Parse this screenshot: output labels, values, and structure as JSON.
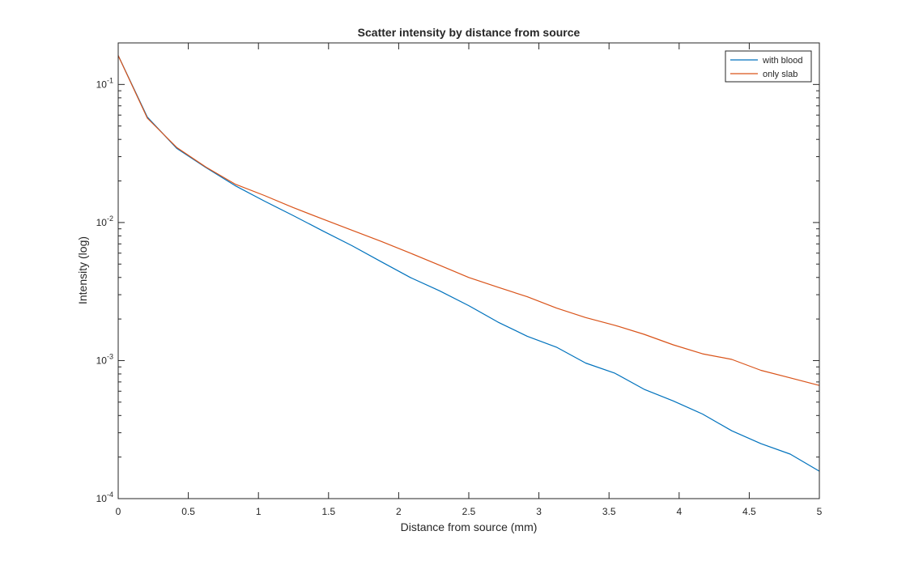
{
  "chart_data": {
    "type": "line",
    "title": "Scatter intensity by distance from source",
    "xlabel": "Distance from source (mm)",
    "ylabel": "Intensity (log)",
    "xlim": [
      0,
      5
    ],
    "ylim": [
      0.0001,
      0.2
    ],
    "yscale": "log",
    "grid": false,
    "legend_position": "top-right",
    "x_ticks": [
      0,
      0.5,
      1,
      1.5,
      2,
      2.5,
      3,
      3.5,
      4,
      4.5,
      5
    ],
    "x_tick_labels": [
      "0",
      "0.5",
      "1",
      "1.5",
      "2",
      "2.5",
      "3",
      "3.5",
      "4",
      "4.5",
      "5"
    ],
    "y_ticks": [
      {
        "value": 0.1,
        "base": "10",
        "exp": "-1"
      },
      {
        "value": 0.01,
        "base": "10",
        "exp": "-2"
      },
      {
        "value": 0.001,
        "base": "10",
        "exp": "-3"
      },
      {
        "value": 0.0001,
        "base": "10",
        "exp": "-4"
      }
    ],
    "x": [
      0,
      0.208,
      0.417,
      0.625,
      0.833,
      1.042,
      1.25,
      1.458,
      1.667,
      1.875,
      2.083,
      2.292,
      2.5,
      2.708,
      2.917,
      3.125,
      3.333,
      3.542,
      3.75,
      3.958,
      4.167,
      4.375,
      4.583,
      4.792,
      5
    ],
    "series": [
      {
        "name": "with blood",
        "color": "#0072BD",
        "values": [
          0.162,
          0.058,
          0.0345,
          0.025,
          0.0185,
          0.0143,
          0.0112,
          0.0087,
          0.0068,
          0.0052,
          0.004,
          0.0032,
          0.0025,
          0.0019,
          0.0015,
          0.00125,
          0.00096,
          0.00081,
          0.00062,
          0.00051,
          0.00041,
          0.00031,
          0.00025,
          0.00021,
          0.000158
        ]
      },
      {
        "name": "only slab",
        "color": "#D95319",
        "values": [
          0.162,
          0.057,
          0.035,
          0.0252,
          0.019,
          0.0157,
          0.0128,
          0.0106,
          0.0088,
          0.0073,
          0.006,
          0.0049,
          0.004,
          0.0034,
          0.0029,
          0.0024,
          0.00205,
          0.0018,
          0.00155,
          0.0013,
          0.00112,
          0.00102,
          0.00085,
          0.00075,
          0.00066
        ]
      }
    ]
  }
}
